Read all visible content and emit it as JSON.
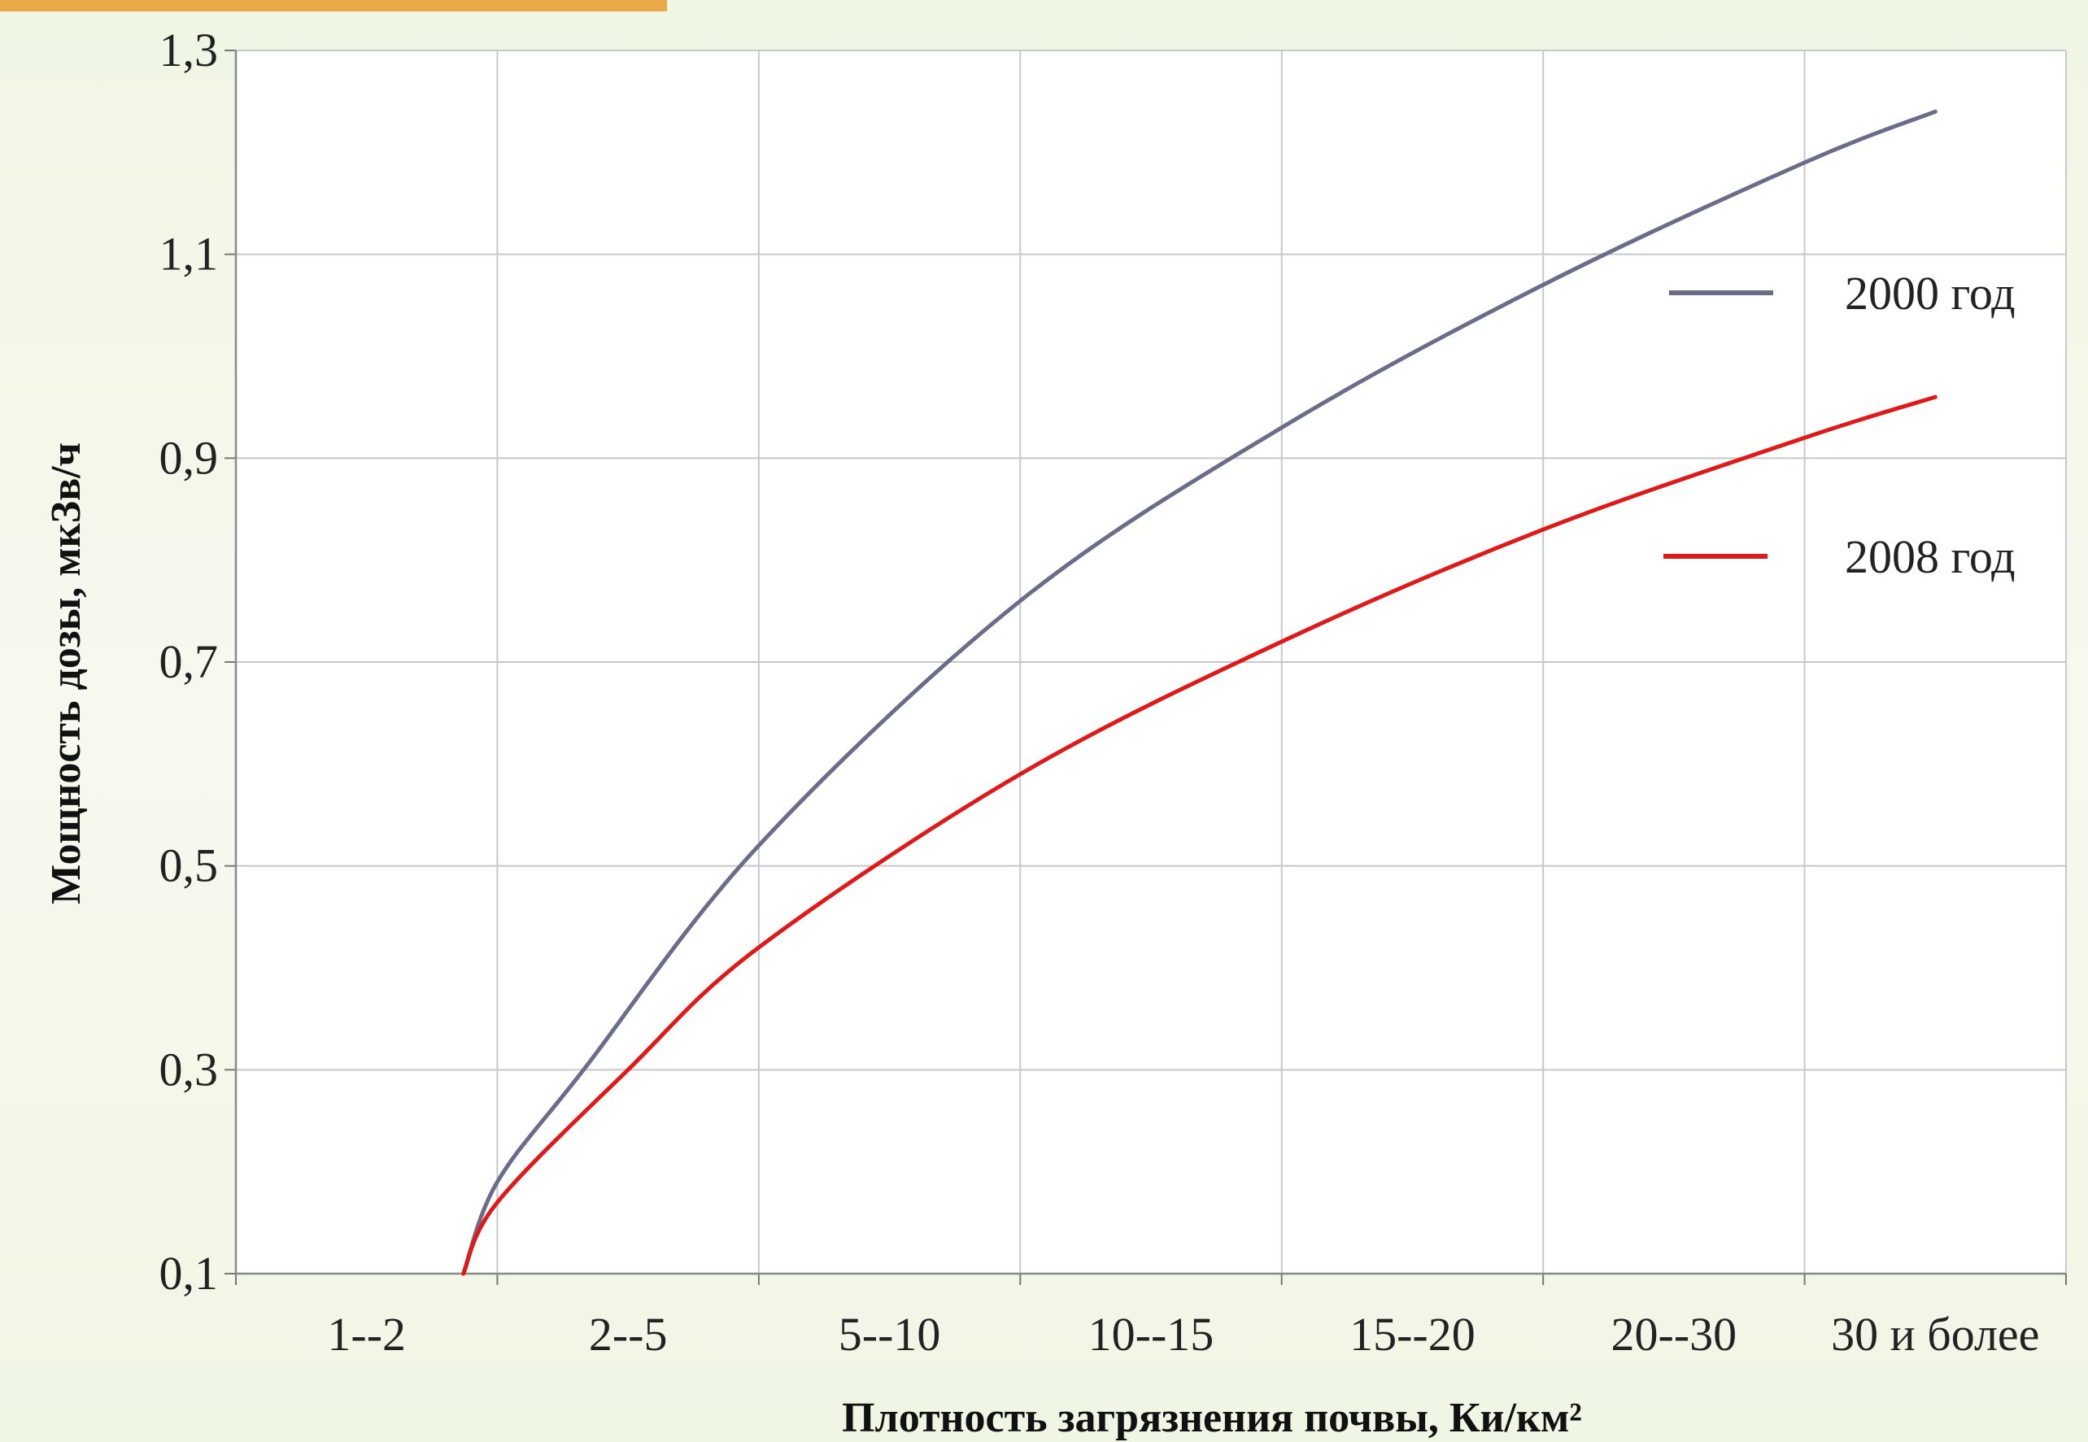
{
  "chart_data": {
    "type": "line",
    "title": "",
    "xlabel": "Плотность загрязнения почвы, Ки/км²",
    "ylabel": "Мощность дозы, мкЗв/ч",
    "categories": [
      "1--2",
      "2--5",
      "5--10",
      "10--15",
      "15--20",
      "20--30",
      "30 и более"
    ],
    "y_ticks": [
      "0,1",
      "0,3",
      "0,5",
      "0,7",
      "0,9",
      "1,1",
      "1,3"
    ],
    "ylim": [
      0.1,
      1.3
    ],
    "grid": true,
    "legend_position": "right",
    "series": [
      {
        "name": "2000 год",
        "color": "#6b6b8a",
        "x": [
          0.87,
          1.0,
          1.33,
          2.0,
          3.0,
          4.0,
          5.0,
          6.0,
          6.5
        ],
        "y": [
          0.1,
          0.19,
          0.3,
          0.52,
          0.76,
          0.93,
          1.07,
          1.19,
          1.24
        ]
      },
      {
        "name": "2008 год",
        "color": "#e01818",
        "x": [
          0.87,
          1.0,
          1.5,
          2.0,
          3.0,
          4.0,
          5.0,
          6.0,
          6.5
        ],
        "y": [
          0.1,
          0.17,
          0.3,
          0.42,
          0.59,
          0.72,
          0.83,
          0.92,
          0.96
        ]
      }
    ]
  }
}
